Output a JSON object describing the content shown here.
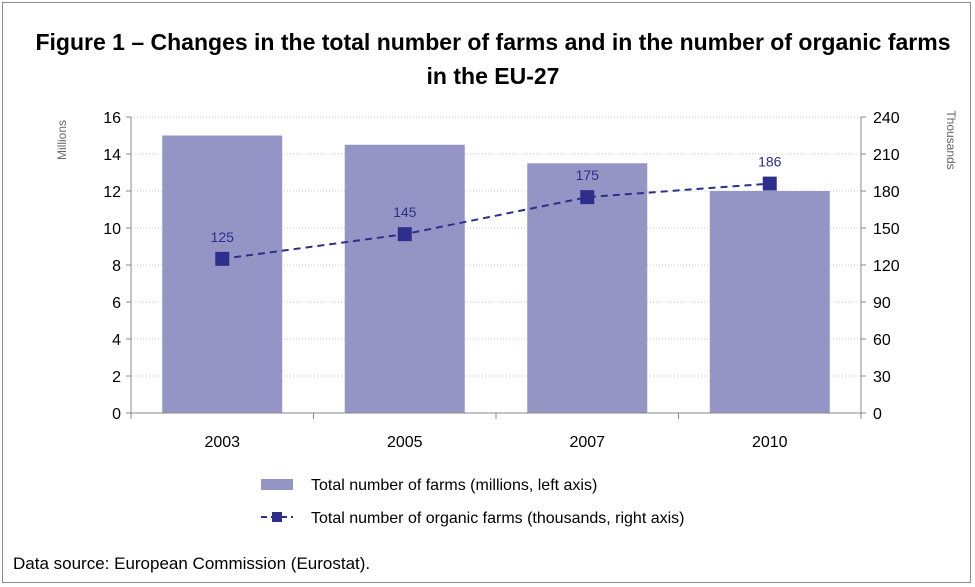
{
  "figure": {
    "title": "Figure 1 – Changes in the total number of farms and in the number of organic farms in the EU-27",
    "source": "Data source: European Commission (Eurostat)."
  },
  "chart_data": {
    "type": "bar",
    "title": "Figure 1 – Changes in the total number of farms and in the number of organic farms in the EU-27",
    "categories": [
      "2003",
      "2005",
      "2007",
      "2010"
    ],
    "series": [
      {
        "name": "Total number of farms (millions, left axis)",
        "type": "bar",
        "axis": "left",
        "values": [
          15,
          14.5,
          13.5,
          12
        ],
        "color": "#9595c5"
      },
      {
        "name": "Total number of organic farms (thousands, right axis)",
        "type": "line",
        "axis": "right",
        "values": [
          125,
          145,
          175,
          186
        ],
        "data_labels": [
          "125",
          "145",
          "175",
          "186"
        ],
        "color": "#2e2e8c",
        "line_style": "dashed",
        "marker": "square"
      }
    ],
    "y_left": {
      "label": "Millions",
      "ylim": [
        0,
        16
      ],
      "ticks": [
        "0",
        "2",
        "4",
        "6",
        "8",
        "10",
        "12",
        "14",
        "16"
      ]
    },
    "y_right": {
      "label": "Thousands",
      "ylim": [
        0,
        240
      ],
      "ticks": [
        "0",
        "30",
        "60",
        "90",
        "120",
        "150",
        "180",
        "210",
        "240"
      ]
    },
    "grid": true,
    "legend_position": "bottom"
  }
}
